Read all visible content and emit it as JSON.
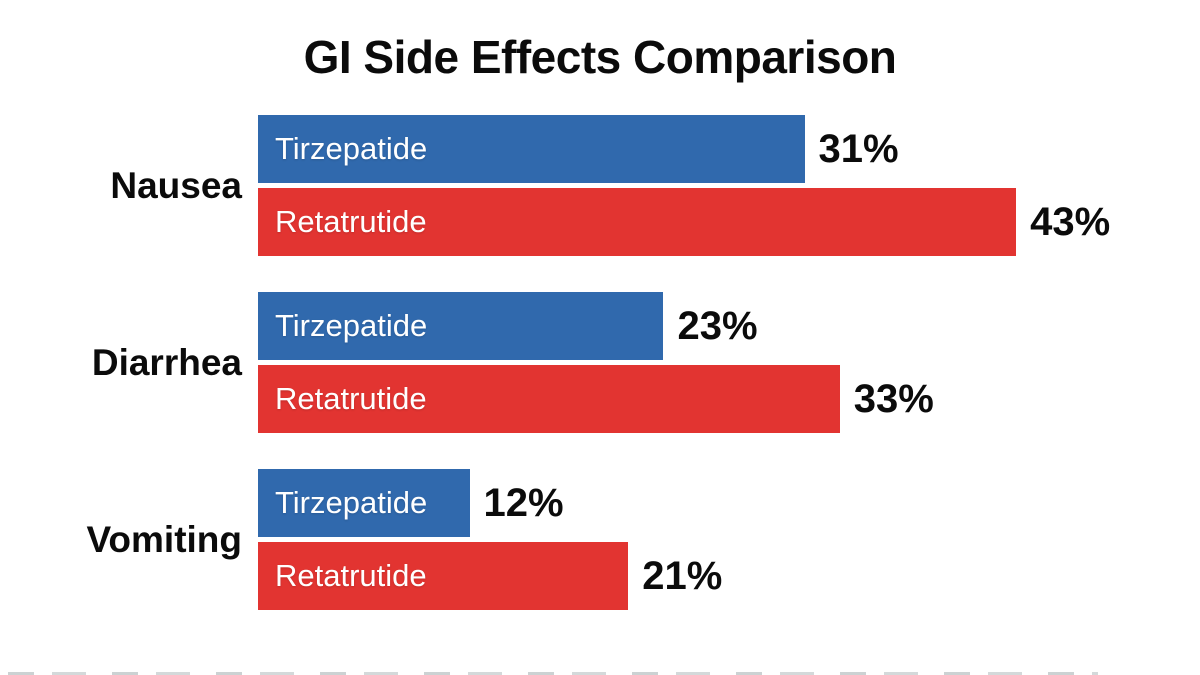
{
  "title": "GI Side Effects Comparison",
  "colors": {
    "tirzepatide_blue": "#3069ad",
    "retatrutide_red": "#e23431",
    "bar_label_text": "#ffffff",
    "text_black": "#0b0b0b"
  },
  "chart_data": {
    "type": "bar",
    "orientation": "horizontal",
    "title": "GI Side Effects Comparison",
    "categories": [
      "Nausea",
      "Diarrhea",
      "Vomiting"
    ],
    "series": [
      {
        "name": "Tirzepatide",
        "color": "#3069ad",
        "values": [
          31,
          23,
          12
        ]
      },
      {
        "name": "Retatrutide",
        "color": "#e23431",
        "values": [
          43,
          33,
          21
        ]
      }
    ],
    "value_unit": "%",
    "value_labels": [
      "31%",
      "43%",
      "23%",
      "33%",
      "12%",
      "21%"
    ],
    "series_labels_inside_bars": true,
    "xlim": [
      0,
      43
    ],
    "grid": false,
    "legend_position": "none"
  }
}
